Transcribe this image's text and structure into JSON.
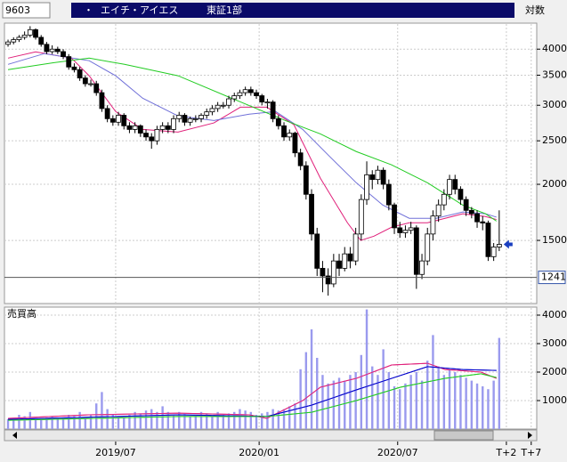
{
  "header": {
    "code": "9603",
    "bullet": "・",
    "name": "エイチ・アイエス",
    "market": "東証1部",
    "scale_mode": "対数"
  },
  "chart_data": [
    {
      "type": "candlestick",
      "log_scale": true,
      "grid": true,
      "xlim": [
        -0.65,
        95.8
      ],
      "ylim": [
        1090,
        4550
      ],
      "yticks": [
        1500,
        2000,
        2500,
        3000,
        3500,
        4000
      ],
      "xticks": [
        {
          "value": 19.5,
          "label": "2019/07"
        },
        {
          "value": 45.5,
          "label": "2020/01"
        },
        {
          "value": 70.6,
          "label": "2020/07"
        },
        {
          "value": 90.3,
          "label": "T+2"
        },
        {
          "value": 94.8,
          "label": "T+7"
        }
      ],
      "ref_line": 1241,
      "up_color": "#ffffff",
      "down_color": "#000000",
      "open": [
        4100,
        4150,
        4200,
        4250,
        4300,
        4420,
        4250,
        4100,
        3950,
        4000,
        3950,
        3850,
        3650,
        3600,
        3450,
        3350,
        3350,
        3200,
        2950,
        2800,
        2750,
        2850,
        2700,
        2650,
        2700,
        2600,
        2550,
        2500,
        2650,
        2700,
        2650,
        2800,
        2850,
        2750,
        2800,
        2800,
        2850,
        2900,
        2950,
        3000,
        3000,
        3100,
        3150,
        3200,
        3250,
        3200,
        3150,
        3050,
        3050,
        2800,
        2700,
        2550,
        2600,
        2350,
        2200,
        1900,
        1550,
        1300,
        1250,
        1200,
        1350,
        1300,
        1400,
        1350,
        1550,
        1850,
        2100,
        2050,
        2150,
        2000,
        1800,
        1600,
        1560,
        1580,
        1600,
        1260,
        1350,
        1550,
        1700,
        1800,
        1900,
        2050,
        1950,
        1850,
        1750,
        1720,
        1650,
        1640,
        1380,
        1450
      ],
      "high": [
        4200,
        4250,
        4300,
        4380,
        4500,
        4450,
        4300,
        4150,
        4080,
        4050,
        4000,
        3900,
        3720,
        3650,
        3500,
        3420,
        3400,
        3250,
        3000,
        2850,
        2900,
        2880,
        2750,
        2750,
        2720,
        2650,
        2600,
        2700,
        2750,
        2750,
        2850,
        2900,
        2880,
        2830,
        2850,
        2880,
        2950,
        3000,
        3050,
        3050,
        3150,
        3200,
        3250,
        3300,
        3300,
        3250,
        3180,
        3100,
        3080,
        2850,
        2750,
        2650,
        2620,
        2400,
        2250,
        1950,
        1600,
        1350,
        1300,
        1400,
        1400,
        1450,
        1450,
        1600,
        1900,
        2250,
        2150,
        2200,
        2180,
        2050,
        1820,
        1650,
        1620,
        1650,
        1620,
        1400,
        1600,
        1750,
        1850,
        1950,
        2100,
        2100,
        1980,
        1880,
        1780,
        1750,
        1700,
        1660,
        1480,
        1750
      ],
      "low": [
        4050,
        4100,
        4150,
        4200,
        4250,
        4200,
        4050,
        3900,
        3900,
        3900,
        3800,
        3600,
        3550,
        3400,
        3300,
        3300,
        3150,
        2900,
        2750,
        2700,
        2700,
        2650,
        2600,
        2600,
        2550,
        2500,
        2400,
        2450,
        2600,
        2600,
        2600,
        2750,
        2700,
        2700,
        2750,
        2750,
        2800,
        2850,
        2900,
        2950,
        2950,
        3050,
        3100,
        3150,
        3150,
        3100,
        3000,
        2950,
        2750,
        2650,
        2500,
        2500,
        2300,
        2150,
        1850,
        1500,
        1250,
        1150,
        1130,
        1180,
        1250,
        1280,
        1300,
        1320,
        1500,
        1800,
        1950,
        2000,
        1950,
        1750,
        1550,
        1520,
        1520,
        1550,
        1170,
        1230,
        1320,
        1500,
        1650,
        1750,
        1850,
        1900,
        1800,
        1700,
        1680,
        1600,
        1580,
        1350,
        1350,
        1420
      ],
      "close": [
        4150,
        4200,
        4250,
        4300,
        4420,
        4250,
        4100,
        3950,
        4000,
        3950,
        3850,
        3650,
        3600,
        3450,
        3350,
        3350,
        3200,
        2950,
        2800,
        2750,
        2850,
        2700,
        2650,
        2700,
        2600,
        2550,
        2500,
        2650,
        2700,
        2650,
        2800,
        2850,
        2750,
        2800,
        2800,
        2850,
        2900,
        2950,
        3000,
        3000,
        3100,
        3150,
        3200,
        3250,
        3200,
        3150,
        3050,
        3050,
        2800,
        2700,
        2550,
        2600,
        2350,
        2200,
        1900,
        1550,
        1300,
        1250,
        1200,
        1350,
        1300,
        1400,
        1350,
        1550,
        1850,
        2100,
        2050,
        2150,
        2000,
        1800,
        1600,
        1560,
        1580,
        1600,
        1260,
        1350,
        1550,
        1700,
        1800,
        1900,
        2050,
        1950,
        1850,
        1750,
        1720,
        1650,
        1640,
        1380,
        1450,
        1470
      ],
      "lines": [
        {
          "color": "#e0207a",
          "x": [
            0,
            5,
            11.5,
            14.7,
            19.5,
            24.4,
            30.8,
            37.3,
            42.1,
            46.9,
            51.8,
            56.6,
            61.5,
            63.9,
            66.3,
            69.5,
            72.7,
            76,
            79.2,
            82.4,
            86.5,
            88.5
          ],
          "values": [
            3820,
            3945,
            3820,
            3490,
            2905,
            2650,
            2615,
            2740,
            2970,
            2970,
            2715,
            2063,
            1642,
            1500,
            1533,
            1605,
            1642,
            1642,
            1680,
            1720,
            1695,
            1670
          ]
        },
        {
          "color": "#7070d8",
          "x": [
            0,
            6.6,
            14.7,
            19.5,
            24.4,
            30.8,
            37.3,
            43.7,
            48.5,
            53.4,
            58.2,
            63.1,
            67.9,
            72.7,
            77.6,
            82.4,
            86.5,
            88.5
          ],
          "values": [
            3700,
            3910,
            3770,
            3490,
            3110,
            2840,
            2775,
            2866,
            2905,
            2650,
            2312,
            2016,
            1798,
            1680,
            1680,
            1735,
            1720,
            1690
          ]
        },
        {
          "color": "#22cc22",
          "x": [
            0,
            8.2,
            14.7,
            21.1,
            30.8,
            40.5,
            50.2,
            56.6,
            63.1,
            69.5,
            76,
            82.4,
            86.5,
            88.5
          ],
          "values": [
            3600,
            3730,
            3820,
            3700,
            3490,
            3110,
            2775,
            2590,
            2366,
            2210,
            2016,
            1798,
            1720,
            1656
          ]
        }
      ]
    },
    {
      "type": "bar",
      "title": "売買高",
      "grid": true,
      "color": "#9a9aee",
      "ylim": [
        0,
        4250
      ],
      "yticks": [
        1000,
        2000,
        3000,
        4000
      ],
      "values": [
        350,
        400,
        500,
        450,
        600,
        400,
        350,
        400,
        450,
        380,
        400,
        500,
        450,
        600,
        400,
        500,
        900,
        1300,
        700,
        500,
        450,
        400,
        500,
        600,
        550,
        650,
        700,
        600,
        800,
        600,
        500,
        600,
        550,
        450,
        500,
        600,
        550,
        500,
        600,
        500,
        550,
        600,
        700,
        650,
        600,
        500,
        550,
        600,
        700,
        650,
        700,
        800,
        900,
        2100,
        2700,
        3500,
        2500,
        1900,
        1600,
        1700,
        1800,
        1700,
        1900,
        2000,
        2600,
        4200,
        2200,
        1900,
        2800,
        2000,
        1500,
        1400,
        1600,
        1900,
        2000,
        1700,
        2400,
        3300,
        2200,
        1900,
        2100,
        2000,
        1900,
        1800,
        1700,
        1600,
        1500,
        1400,
        1700,
        3200
      ],
      "lines": [
        {
          "color": "#e0207a",
          "x": [
            0,
            14.7,
            30.8,
            43.7,
            46.9,
            53.4,
            56.6,
            63.1,
            69.5,
            76,
            79.2,
            85.7,
            88.5
          ],
          "values": [
            375,
            500,
            560,
            500,
            375,
            1000,
            1470,
            1780,
            2250,
            2310,
            2090,
            2000,
            1780
          ]
        },
        {
          "color": "#0000cc",
          "x": [
            0,
            30.8,
            46.9,
            55,
            63.1,
            69.5,
            76,
            82.4,
            88.5
          ],
          "values": [
            340,
            500,
            440,
            840,
            1375,
            1780,
            2190,
            2090,
            2060
          ]
        },
        {
          "color": "#22cc22",
          "x": [
            0,
            30.8,
            46.9,
            55,
            63.1,
            71.1,
            79.2,
            85.7,
            88.5
          ],
          "values": [
            310,
            440,
            440,
            590,
            1000,
            1470,
            1780,
            1940,
            1810
          ]
        }
      ]
    }
  ]
}
